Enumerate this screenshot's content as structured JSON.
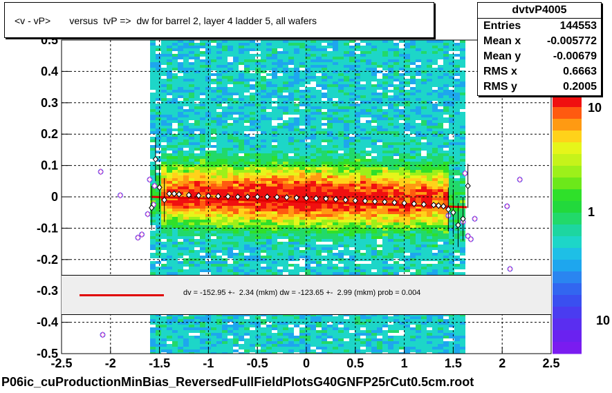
{
  "title": "<v - vP>       versus  tvP =>  dw for barrel 2, layer 4 ladder 5, all wafers",
  "stats": {
    "name": "dvtvP4005",
    "rows": [
      {
        "label": "Entries",
        "value": "144553"
      },
      {
        "label": "Mean x",
        "value": "-0.005772"
      },
      {
        "label": "Mean y",
        "value": "-0.00679"
      },
      {
        "label": "RMS x",
        "value": "0.6663"
      },
      {
        "label": "RMS y",
        "value": "0.2005"
      }
    ]
  },
  "fit_legend": "dv = -152.95 +-  2.34 (mkm) dw = -123.65 +-  2.99 (mkm) prob = 0.004",
  "footer": "P06ic_cuProductionMinBias_ReversedFullFieldPlotsG40GNFP25rCut0.5cm.root",
  "colors": {
    "fit_line": "#e00000",
    "profile_points": "#000000",
    "profile_points_alt": "#cc44cc",
    "background": "#ffffff"
  },
  "chart_data": {
    "type": "heatmap",
    "xlim": [
      -2.5,
      2.5
    ],
    "ylim": [
      -0.5,
      0.5
    ],
    "x_ticks": [
      "-2.5",
      "-2",
      "-1.5",
      "-1",
      "-0.5",
      "0",
      "0.5",
      "1",
      "1.5",
      "2",
      "2.5"
    ],
    "y_ticks": [
      "-0.5",
      "-0.4",
      "-0.3",
      "-0.2",
      "-0.1",
      "0",
      "0.1",
      "0.2",
      "0.3",
      "0.4",
      "0.5"
    ],
    "grid": true,
    "colorbar": {
      "labels": [
        "10",
        "1",
        "10"
      ],
      "scale": "log"
    },
    "fit_line": {
      "x": [
        -1.58,
        1.64
      ],
      "y": [
        0.0,
        -0.033
      ]
    },
    "profile_black": {
      "x": [
        -1.58,
        -1.54,
        -1.5,
        -1.45,
        -1.4,
        -1.35,
        -1.3,
        -1.2,
        -1.1,
        -1.0,
        -0.9,
        -0.8,
        -0.7,
        -0.6,
        -0.5,
        -0.4,
        -0.3,
        -0.2,
        -0.1,
        0.0,
        0.1,
        0.2,
        0.3,
        0.4,
        0.5,
        0.6,
        0.7,
        0.8,
        0.9,
        1.0,
        1.1,
        1.2,
        1.3,
        1.35,
        1.4,
        1.45,
        1.5,
        1.55,
        1.6,
        1.65
      ],
      "y": [
        -0.035,
        0.12,
        0.03,
        -0.01,
        0.01,
        0.01,
        0.008,
        0.006,
        0.004,
        0.003,
        0.002,
        0.001,
        0.0,
        0.0,
        0.0,
        0.0,
        -0.001,
        -0.002,
        -0.003,
        -0.004,
        -0.005,
        -0.006,
        -0.008,
        -0.01,
        -0.012,
        -0.013,
        -0.015,
        -0.016,
        -0.018,
        -0.02,
        -0.022,
        -0.024,
        -0.026,
        -0.028,
        -0.03,
        -0.04,
        -0.05,
        -0.09,
        -0.07,
        0.035
      ]
    },
    "profile_magenta": {
      "x": [
        -2.1,
        -1.9,
        -1.72,
        -1.68,
        -1.62,
        -1.6,
        -1.56,
        -1.55,
        1.45,
        1.6,
        1.62,
        1.65,
        1.68,
        1.72,
        2.05,
        2.08,
        2.18,
        -2.08
      ],
      "y": [
        0.08,
        0.005,
        -0.13,
        -0.12,
        -0.055,
        0.055,
        -0.025,
        0.035,
        -0.06,
        -0.08,
        0.075,
        -0.125,
        -0.135,
        -0.07,
        -0.03,
        -0.23,
        0.055,
        -0.44
      ]
    }
  }
}
